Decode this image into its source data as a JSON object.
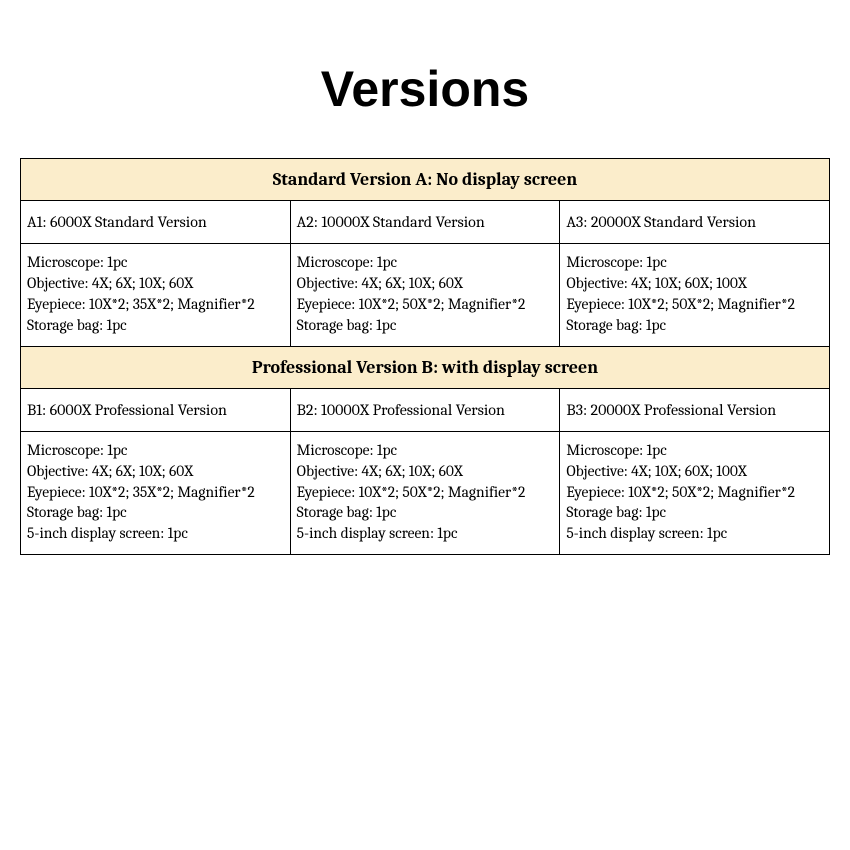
{
  "title": "Versions",
  "colors": {
    "header_bg": "#fbedcb",
    "border": "#000000",
    "page_bg": "#ffffff",
    "text": "#000000"
  },
  "fonts": {
    "title_family": "Arial",
    "title_size_pt": 38,
    "title_weight": 900,
    "body_family": "Cambria",
    "header_size_pt": 14,
    "cell_size_pt": 12
  },
  "table": {
    "sections": [
      {
        "header": "Standard Version A: No display screen",
        "variants": [
          {
            "name": "A1: 6000X Standard Version",
            "spec": "Microscope: 1pc\nObjective: 4X; 6X; 10X; 60X\nEyepiece: 10X*2; 35X*2; Magnifier*2\nStorage bag: 1pc"
          },
          {
            "name": "A2: 10000X Standard Version",
            "spec": "Microscope: 1pc\nObjective: 4X; 6X; 10X; 60X\nEyepiece: 10X*2; 50X*2; Magnifier*2\nStorage bag: 1pc"
          },
          {
            "name": "A3: 20000X Standard Version",
            "spec": "Microscope: 1pc\nObjective: 4X; 10X; 60X; 100X\nEyepiece: 10X*2; 50X*2; Magnifier*2\nStorage bag: 1pc"
          }
        ]
      },
      {
        "header": "Professional Version B: with display screen",
        "variants": [
          {
            "name": "B1: 6000X Professional Version",
            "spec": "Microscope: 1pc\nObjective: 4X; 6X; 10X; 60X\nEyepiece: 10X*2; 35X*2; Magnifier*2\nStorage bag: 1pc\n5-inch display screen: 1pc"
          },
          {
            "name": "B2: 10000X Professional Version",
            "spec": "Microscope: 1pc\nObjective: 4X; 6X; 10X; 60X\nEyepiece: 10X*2; 50X*2; Magnifier*2\nStorage bag: 1pc\n5-inch display screen: 1pc"
          },
          {
            "name": "B3: 20000X Professional Version",
            "spec": "Microscope: 1pc\nObjective: 4X; 10X; 60X; 100X\nEyepiece: 10X*2; 50X*2; Magnifier*2\nStorage bag: 1pc\n5-inch display screen: 1pc"
          }
        ]
      }
    ]
  }
}
